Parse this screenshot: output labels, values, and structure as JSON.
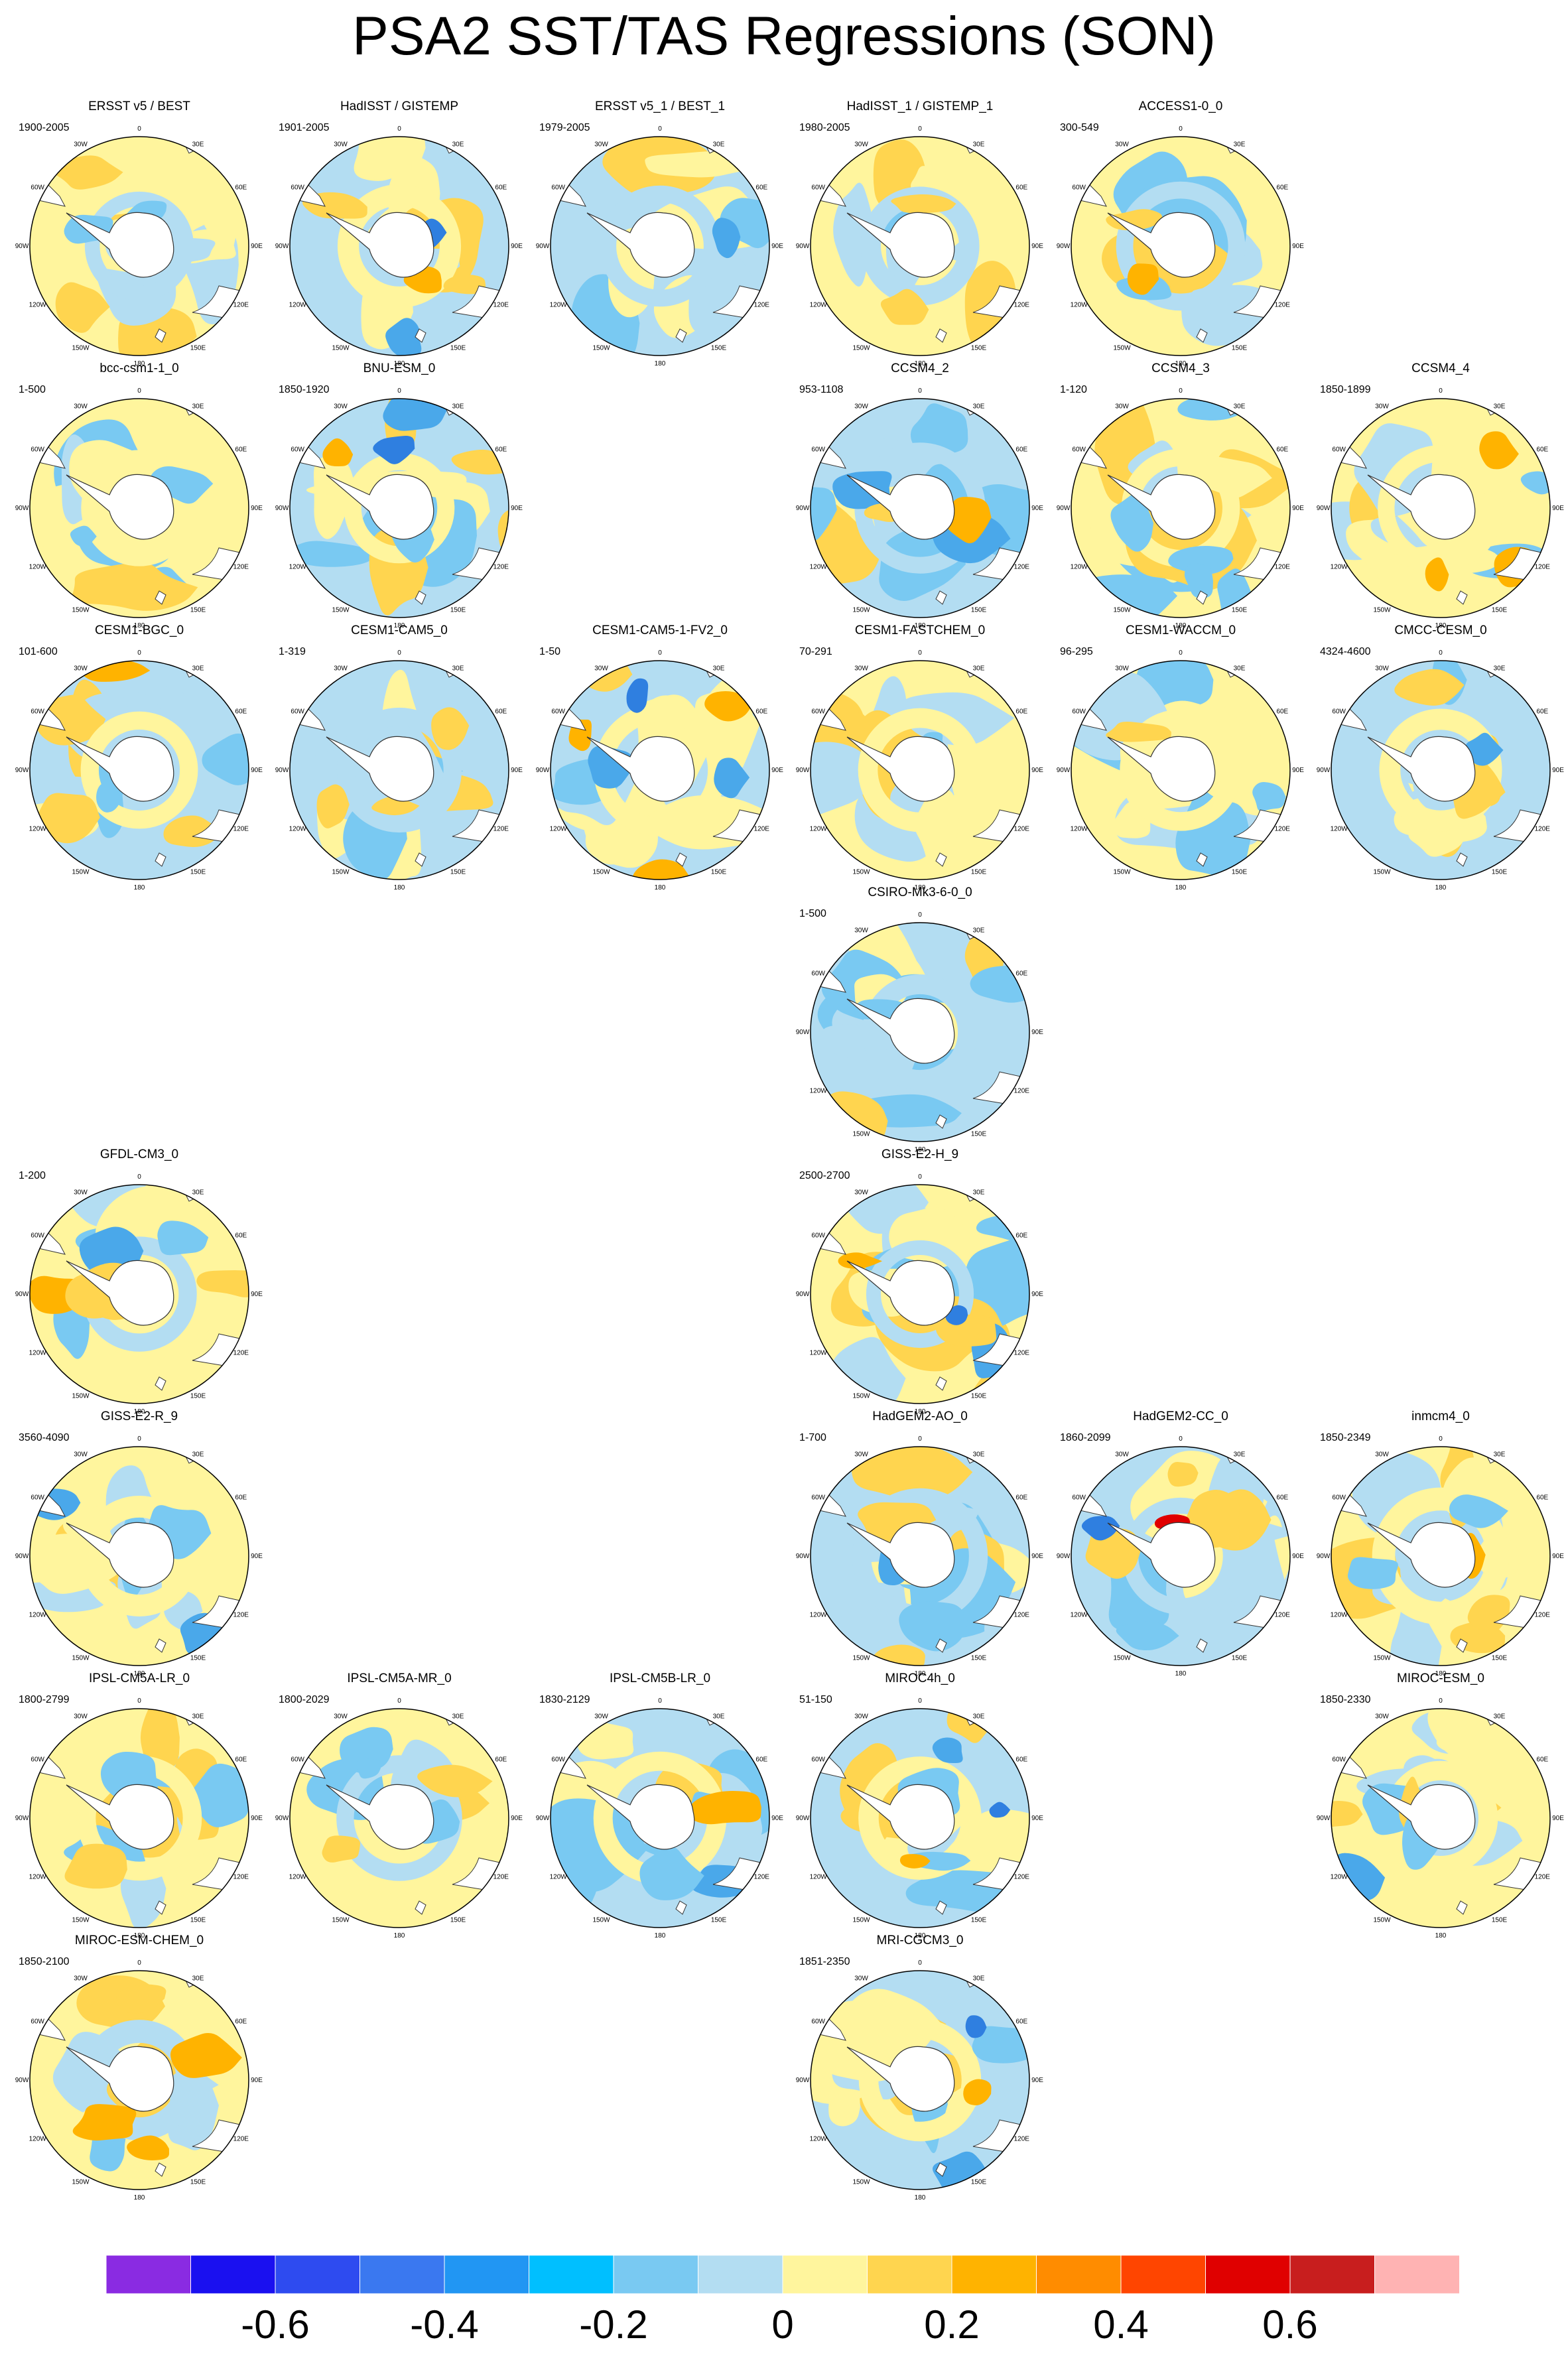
{
  "title": "PSA2 SST/TAS Regressions (SON)",
  "chart_data": {
    "type": "heatmap",
    "projection": "south polar stereographic",
    "longitude_labels": [
      "0",
      "30E",
      "60E",
      "90E",
      "120E",
      "150E",
      "180",
      "150W",
      "120W",
      "90W",
      "60W",
      "30W"
    ],
    "panels": [
      {
        "name": "ERSST v5 / BEST",
        "period": "1900-2005",
        "row": 0,
        "col": 0,
        "pattern": 1
      },
      {
        "name": "HadISST / GISTEMP",
        "period": "1901-2005",
        "row": 0,
        "col": 1,
        "pattern": 2
      },
      {
        "name": "ERSST v5_1 / BEST_1",
        "period": "1979-2005",
        "row": 0,
        "col": 2,
        "pattern": 3
      },
      {
        "name": "HadISST_1 / GISTEMP_1",
        "period": "1980-2005",
        "row": 0,
        "col": 3,
        "pattern": 4
      },
      {
        "name": "ACCESS1-0_0",
        "period": "300-549",
        "row": 0,
        "col": 4,
        "pattern": 5
      },
      {
        "name": "bcc-csm1-1_0",
        "period": "1-500",
        "row": 1,
        "col": 0,
        "pattern": 6
      },
      {
        "name": "BNU-ESM_0",
        "period": "1850-1920",
        "row": 1,
        "col": 1,
        "pattern": 7
      },
      {
        "name": "CCSM4_2",
        "period": "953-1108",
        "row": 1,
        "col": 3,
        "pattern": 8
      },
      {
        "name": "CCSM4_3",
        "period": "1-120",
        "row": 1,
        "col": 4,
        "pattern": 9
      },
      {
        "name": "CCSM4_4",
        "period": "1850-1899",
        "row": 1,
        "col": 5,
        "pattern": 10
      },
      {
        "name": "CESM1-BGC_0",
        "period": "101-600",
        "row": 2,
        "col": 0,
        "pattern": 11
      },
      {
        "name": "CESM1-CAM5_0",
        "period": "1-319",
        "row": 2,
        "col": 1,
        "pattern": 12
      },
      {
        "name": "CESM1-CAM5-1-FV2_0",
        "period": "1-50",
        "row": 2,
        "col": 2,
        "pattern": 13
      },
      {
        "name": "CESM1-FASTCHEM_0",
        "period": "70-291",
        "row": 2,
        "col": 3,
        "pattern": 14
      },
      {
        "name": "CESM1-WACCM_0",
        "period": "96-295",
        "row": 2,
        "col": 4,
        "pattern": 15
      },
      {
        "name": "CMCC-CESM_0",
        "period": "4324-4600",
        "row": 2,
        "col": 5,
        "pattern": 16
      },
      {
        "name": "CSIRO-Mk3-6-0_0",
        "period": "1-500",
        "row": 3,
        "col": 3,
        "pattern": 17
      },
      {
        "name": "GFDL-CM3_0",
        "period": "1-200",
        "row": 4,
        "col": 0,
        "pattern": 18
      },
      {
        "name": "GISS-E2-H_9",
        "period": "2500-2700",
        "row": 4,
        "col": 3,
        "pattern": 19
      },
      {
        "name": "GISS-E2-R_9",
        "period": "3560-4090",
        "row": 5,
        "col": 0,
        "pattern": 20
      },
      {
        "name": "HadGEM2-AO_0",
        "period": "1-700",
        "row": 5,
        "col": 3,
        "pattern": 21
      },
      {
        "name": "HadGEM2-CC_0",
        "period": "1860-2099",
        "row": 5,
        "col": 4,
        "pattern": 22
      },
      {
        "name": "inmcm4_0",
        "period": "1850-2349",
        "row": 5,
        "col": 5,
        "pattern": 23
      },
      {
        "name": "IPSL-CM5A-LR_0",
        "period": "1800-2799",
        "row": 6,
        "col": 0,
        "pattern": 24
      },
      {
        "name": "IPSL-CM5A-MR_0",
        "period": "1800-2029",
        "row": 6,
        "col": 1,
        "pattern": 25
      },
      {
        "name": "IPSL-CM5B-LR_0",
        "period": "1830-2129",
        "row": 6,
        "col": 2,
        "pattern": 26
      },
      {
        "name": "MIROC4h_0",
        "period": "51-150",
        "row": 6,
        "col": 3,
        "pattern": 27
      },
      {
        "name": "MIROC-ESM_0",
        "period": "1850-2330",
        "row": 6,
        "col": 5,
        "pattern": 28
      },
      {
        "name": "MIROC-ESM-CHEM_0",
        "period": "1850-2100",
        "row": 7,
        "col": 0,
        "pattern": 29
      },
      {
        "name": "MRI-CGCM3_0",
        "period": "1851-2350",
        "row": 7,
        "col": 3,
        "pattern": 30
      }
    ],
    "colorbar": {
      "colors": [
        "#8a2be2",
        "#1a10f0",
        "#2e4bf0",
        "#3a78f0",
        "#2196f3",
        "#00bfff",
        "#79c9f2",
        "#b3ddf2",
        "#fff59d",
        "#ffd54f",
        "#ffb300",
        "#ff8c00",
        "#ff4500",
        "#e00000",
        "#c81e1e",
        "#ffb3b3"
      ],
      "tick_labels": [
        "-0.6",
        "-0.4",
        "-0.2",
        "0",
        "0.2",
        "0.4",
        "0.6"
      ],
      "tick_positions": [
        1,
        3,
        5,
        7,
        9,
        11,
        13
      ]
    }
  }
}
